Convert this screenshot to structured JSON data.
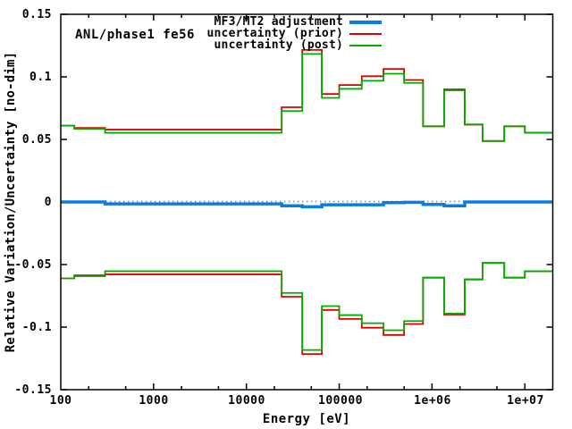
{
  "chart_data": {
    "type": "line",
    "subtype": "step-histogram",
    "title_annotation": "ANL/phase1 fe56",
    "xlabel": "Energy [eV]",
    "ylabel": "Relative Variation/Uncertainty [no-dim]",
    "x_scale": "log",
    "grid": "off",
    "legend_position": "top-right-inside",
    "xlim": [
      100,
      20000000
    ],
    "ylim": [
      -0.15,
      0.15
    ],
    "x_tick_values": [
      100,
      1000,
      10000,
      100000,
      1000000,
      10000000
    ],
    "x_tick_labels": [
      "100",
      "1000",
      "10000",
      "100000",
      "1e+06",
      "1e+07"
    ],
    "x_minor_tick_multiples": [
      2,
      5
    ],
    "y_tick_values": [
      0.15,
      0.1,
      0.05,
      0,
      -0.05,
      -0.1,
      -0.15
    ],
    "y_tick_labels": [
      "0.15",
      "0.1",
      "0.05",
      "0",
      "-0.05",
      "-0.1",
      "-0.15"
    ],
    "colors": {
      "adjustment": "#0a7de0",
      "prior": "#dd0000",
      "post": "#00ad00",
      "zero_line": "#909090",
      "axis": "#000000"
    },
    "zero_line_style": "dotted",
    "energy_boundaries_eV": [
      100,
      140,
      300,
      24000,
      40000,
      65000,
      100000,
      175000,
      300000,
      500000,
      800000,
      1350000,
      2250000,
      3500000,
      6000000,
      10000000,
      20000000
    ],
    "legend": [
      {
        "label": "MF3/MT2 adjustment",
        "color": "#0a7de0",
        "thickness": 4
      },
      {
        "label": "uncertainty (prior)",
        "color": "#dd0000",
        "thickness": 2
      },
      {
        "label": "uncertainty (post)",
        "color": "#00ad00",
        "thickness": 2
      }
    ],
    "series": [
      {
        "name": "MF3/MT2 adjustment",
        "mirrored": false,
        "values": [
          0.0,
          0.0,
          -0.0015,
          -0.003,
          -0.0038,
          -0.0022,
          -0.0022,
          -0.0022,
          -0.0005,
          -0.0003,
          -0.002,
          -0.003,
          0.0,
          0.0,
          0.0,
          0.0
        ]
      },
      {
        "name": "uncertainty (prior)",
        "mirrored": true,
        "values": [
          0.061,
          0.0592,
          0.0578,
          0.0757,
          0.1215,
          0.0863,
          0.0935,
          0.1005,
          0.1063,
          0.0975,
          0.0605,
          0.09,
          0.0618,
          0.0487,
          0.0605,
          0.0553
        ]
      },
      {
        "name": "uncertainty (post)",
        "mirrored": true,
        "values": [
          0.061,
          0.0585,
          0.0553,
          0.0727,
          0.1183,
          0.0832,
          0.0904,
          0.0969,
          0.1025,
          0.0952,
          0.0605,
          0.0892,
          0.062,
          0.0487,
          0.0605,
          0.0553
        ]
      }
    ]
  }
}
